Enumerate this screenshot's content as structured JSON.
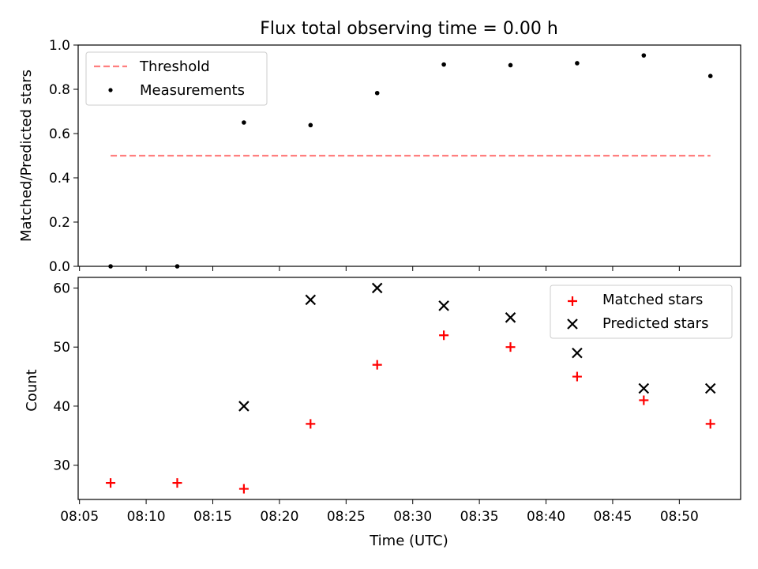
{
  "chart_data": {
    "title": "Flux total observing time = 0.00 h",
    "xlabel": "Time (UTC)",
    "x_tick_labels": [
      "08:05",
      "08:10",
      "08:15",
      "08:20",
      "08:25",
      "08:30",
      "08:35",
      "08:40",
      "08:45",
      "08:50"
    ],
    "x_ticks_minutes": [
      485,
      490,
      495,
      500,
      505,
      510,
      515,
      520,
      525,
      530
    ],
    "xlim_minutes": [
      484.9,
      534.6
    ],
    "panels": [
      {
        "type": "scatter",
        "ylabel": "Matched/Predicted stars",
        "ylim": [
          0,
          1
        ],
        "y_ticks": [
          0,
          0.2,
          0.4,
          0.6,
          0.8,
          1.0
        ],
        "y_tick_labels": [
          "0.0",
          "0.2",
          "0.4",
          "0.6",
          "0.8",
          "1.0"
        ],
        "legend": {
          "location": "upper-left"
        },
        "series": [
          {
            "name": "Threshold",
            "style": "dashed-line",
            "color": "#ff7f7f",
            "x": [
              "08:07:20",
              "08:52:20"
            ],
            "values": [
              0.5,
              0.5
            ]
          },
          {
            "name": "Measurements",
            "style": "dot",
            "color": "#000000",
            "x": [
              "08:07:20",
              "08:12:20",
              "08:17:20",
              "08:22:20",
              "08:27:20",
              "08:32:20",
              "08:37:20",
              "08:42:20",
              "08:47:20",
              "08:52:20"
            ],
            "values": [
              0.0,
              0.0,
              0.65,
              0.638,
              0.783,
              0.912,
              0.909,
              0.918,
              0.953,
              0.86
            ]
          }
        ]
      },
      {
        "type": "scatter",
        "ylabel": "Count",
        "ylim": [
          24.2,
          61.8
        ],
        "y_ticks": [
          30,
          40,
          50,
          60
        ],
        "y_tick_labels": [
          "30",
          "40",
          "50",
          "60"
        ],
        "legend": {
          "location": "upper-right"
        },
        "series": [
          {
            "name": "Matched stars",
            "marker": "+",
            "color": "#ff0000",
            "x": [
              "08:07:20",
              "08:12:20",
              "08:17:20",
              "08:22:20",
              "08:27:20",
              "08:32:20",
              "08:37:20",
              "08:42:20",
              "08:47:20",
              "08:52:20"
            ],
            "values": [
              27,
              27,
              26,
              37,
              47,
              52,
              50,
              45,
              41,
              37
            ]
          },
          {
            "name": "Predicted stars",
            "marker": "x",
            "color": "#000000",
            "x": [
              "08:17:20",
              "08:22:20",
              "08:27:20",
              "08:32:20",
              "08:37:20",
              "08:42:20",
              "08:47:20",
              "08:52:20"
            ],
            "values": [
              40,
              58,
              60,
              57,
              55,
              49,
              43,
              43
            ]
          }
        ]
      }
    ]
  }
}
